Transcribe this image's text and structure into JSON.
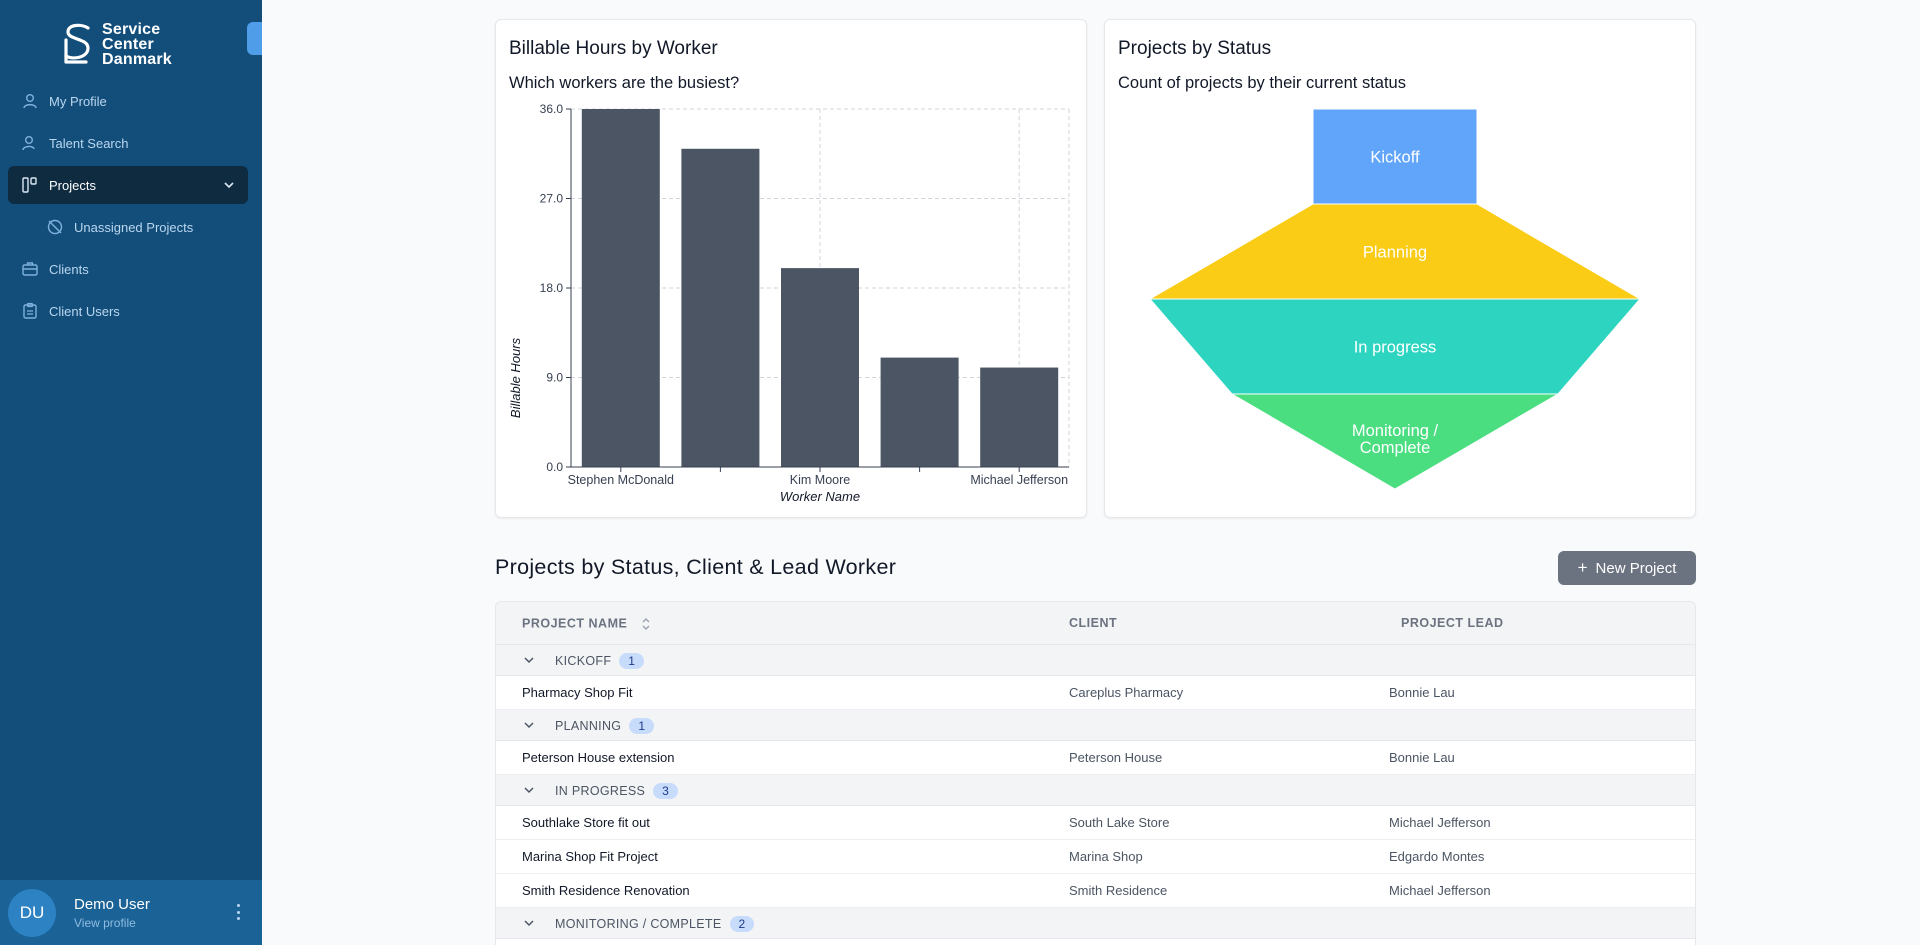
{
  "sidebar": {
    "logo": {
      "line1": "Service",
      "line2": "Center",
      "line3": "Danmark"
    },
    "nav": [
      {
        "label": "My Profile",
        "icon": "user-icon"
      },
      {
        "label": "Talent Search",
        "icon": "user-search-icon"
      },
      {
        "label": "Projects",
        "icon": "projects-icon",
        "active": true
      },
      {
        "label": "Unassigned Projects",
        "icon": "unassigned-icon"
      },
      {
        "label": "Clients",
        "icon": "briefcase-icon"
      },
      {
        "label": "Client Users",
        "icon": "clipboard-icon"
      }
    ],
    "user": {
      "initials": "DU",
      "name": "Demo User",
      "link": "View profile"
    }
  },
  "bar_card": {
    "title": "Billable Hours by Worker",
    "subtitle": "Which workers are the busiest?"
  },
  "funnel_card": {
    "title": "Projects by Status",
    "subtitle": "Count of projects by their current status"
  },
  "chart_data": [
    {
      "type": "bar",
      "title": "Billable Hours by Worker",
      "subtitle": "Which workers are the busiest?",
      "xlabel": "Worker Name",
      "ylabel": "Billable Hours",
      "categories": [
        "Stephen McDonald",
        "",
        "Kim Moore",
        "",
        "Michael Jefferson"
      ],
      "values": [
        36.0,
        32.0,
        20.0,
        11.0,
        10.0
      ],
      "ylim": [
        0,
        36
      ],
      "yticks": [
        "0.0",
        "9.0",
        "18.0",
        "27.0",
        "36.0"
      ],
      "grid": true,
      "color": "#4b5563"
    },
    {
      "type": "funnel",
      "title": "Projects by Status",
      "subtitle": "Count of projects by their current status",
      "stages": [
        {
          "label": "Kickoff",
          "value": 1,
          "color": "#60a5fa"
        },
        {
          "label": "Planning",
          "value": 1,
          "color": "#facc15"
        },
        {
          "label": "In progress",
          "value": 3,
          "color": "#2dd4bf"
        },
        {
          "label": "Monitoring / Complete",
          "value": 2,
          "color": "#4ade80"
        }
      ]
    }
  ],
  "section": {
    "title": "Projects by Status, Client & Lead Worker",
    "new_button": "New Project"
  },
  "table": {
    "columns": [
      "PROJECT NAME",
      "CLIENT",
      "PROJECT LEAD"
    ],
    "groups": [
      {
        "label": "KICKOFF",
        "count": "1",
        "rows": [
          {
            "name": "Pharmacy Shop Fit",
            "client": "Careplus Pharmacy",
            "lead": "Bonnie Lau"
          }
        ]
      },
      {
        "label": "PLANNING",
        "count": "1",
        "rows": [
          {
            "name": "Peterson House extension",
            "client": "Peterson House",
            "lead": "Bonnie Lau"
          }
        ]
      },
      {
        "label": "IN PROGRESS",
        "count": "3",
        "rows": [
          {
            "name": "Southlake Store fit out",
            "client": "South Lake Store",
            "lead": "Michael Jefferson"
          },
          {
            "name": "Marina Shop Fit Project",
            "client": "Marina Shop",
            "lead": "Edgardo Montes"
          },
          {
            "name": "Smith Residence Renovation",
            "client": "Smith Residence",
            "lead": "Michael Jefferson"
          }
        ]
      },
      {
        "label": "MONITORING / COMPLETE",
        "count": "2",
        "rows": []
      }
    ]
  }
}
